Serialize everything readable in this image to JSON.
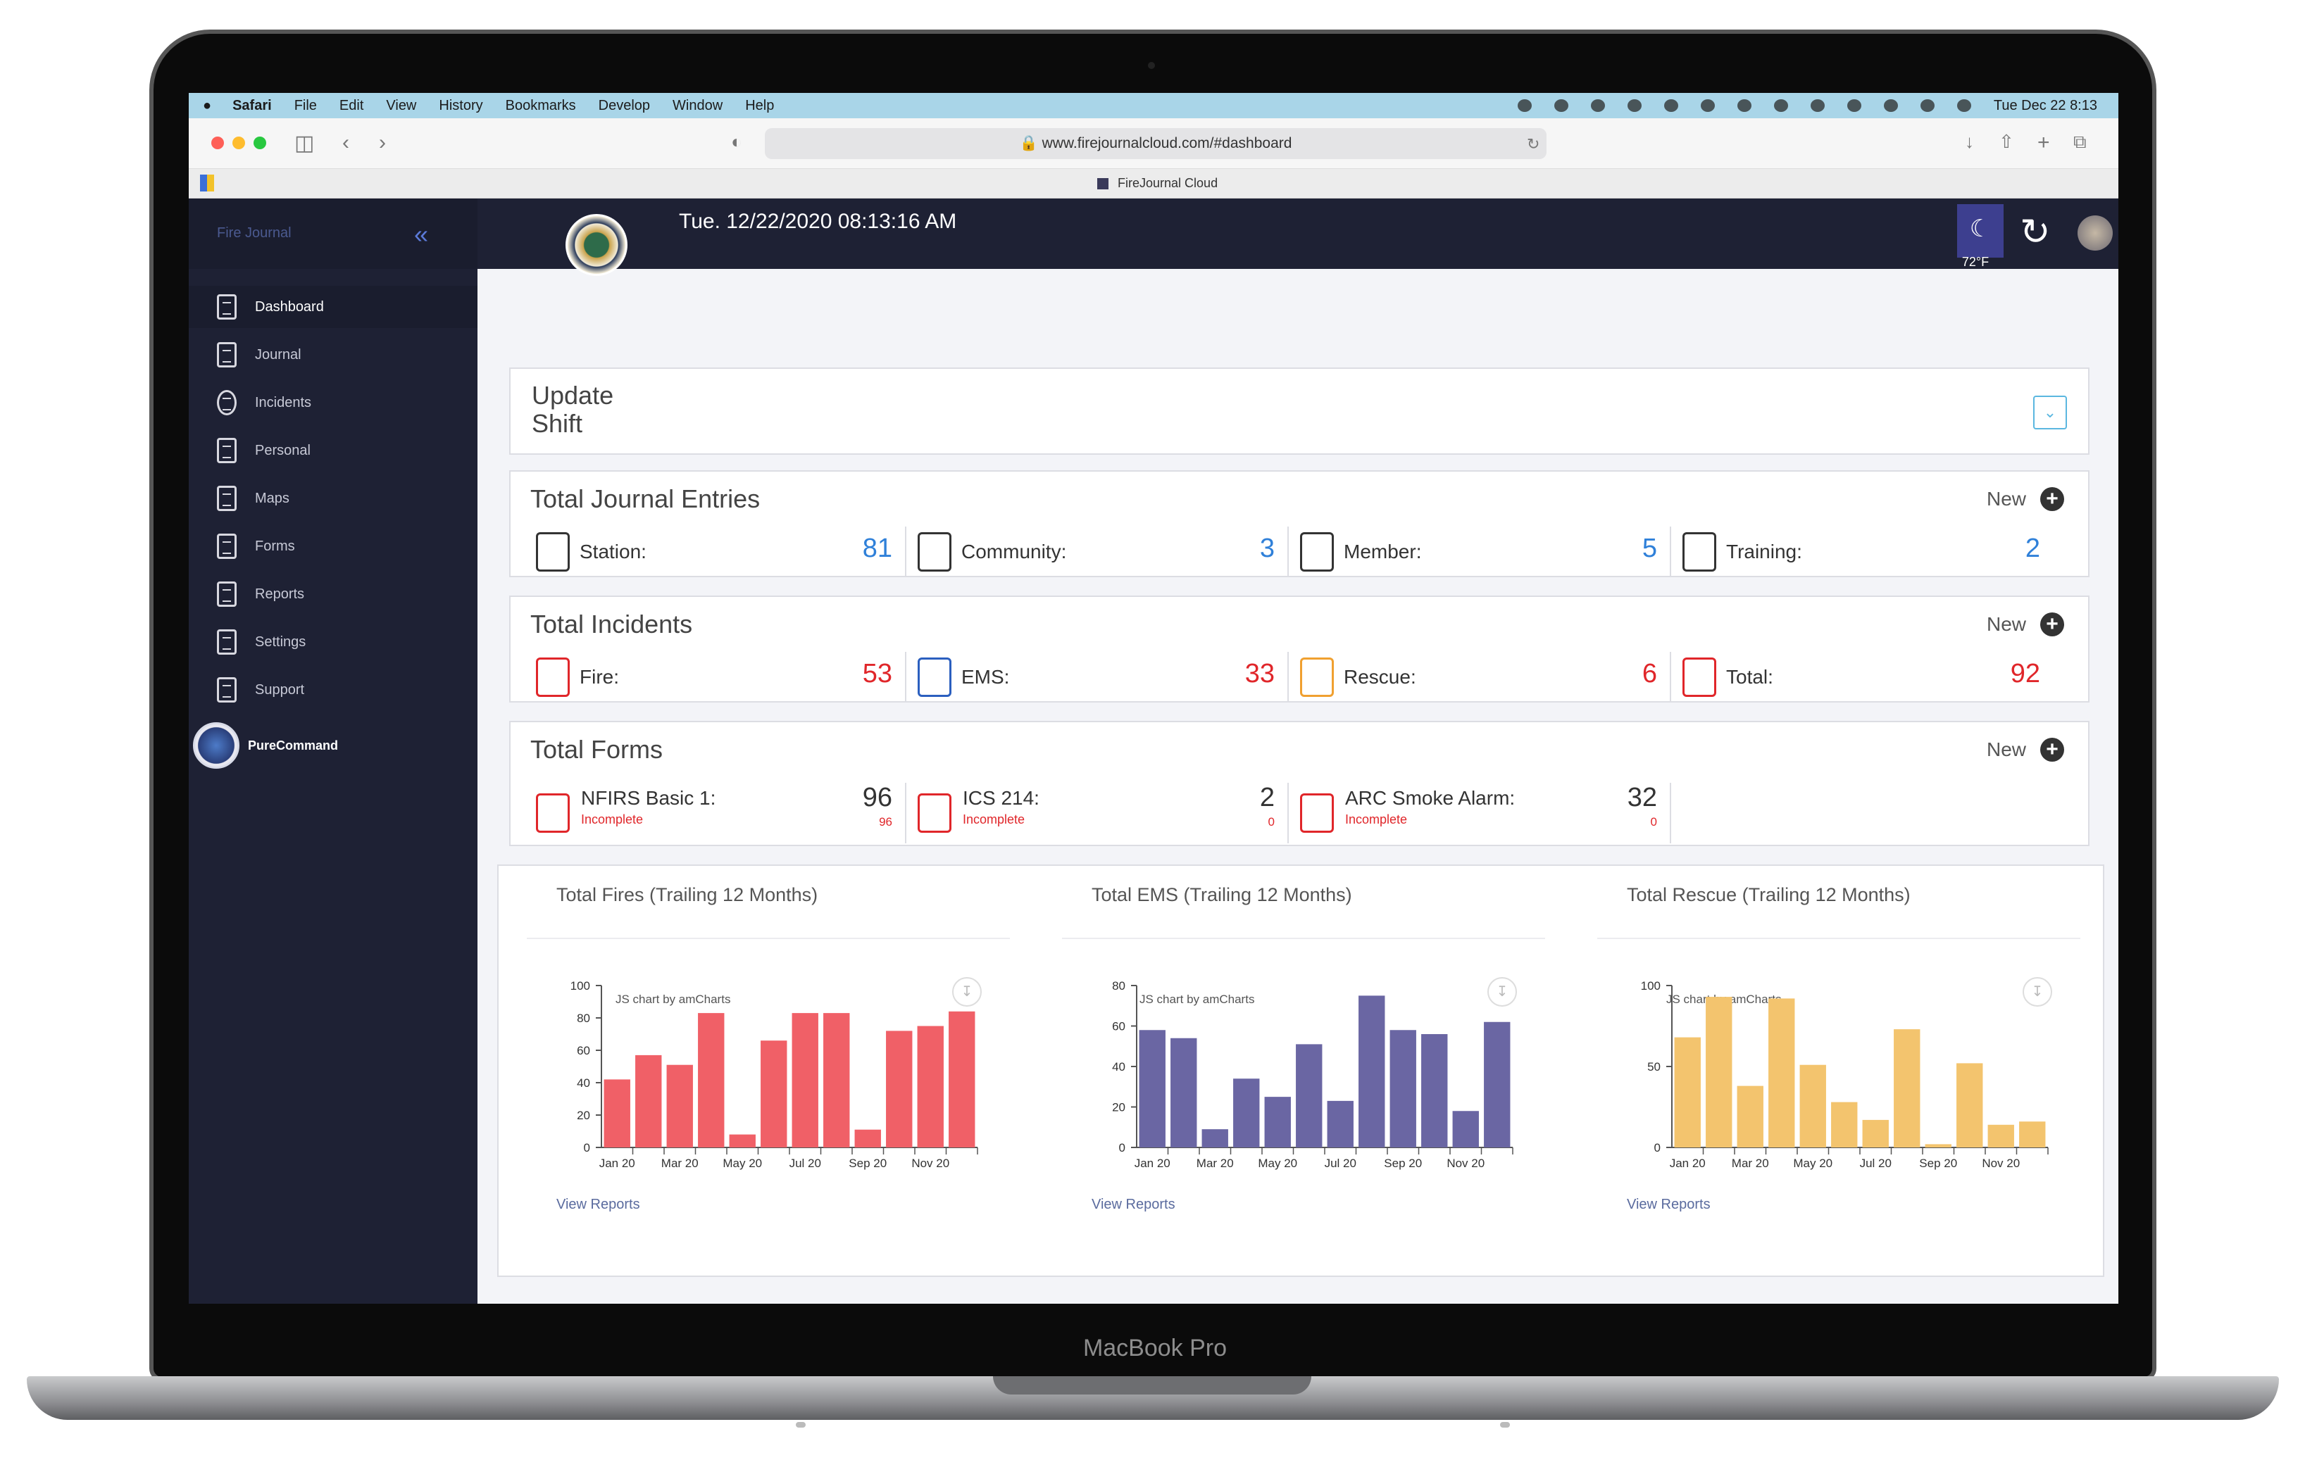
{
  "menubar": {
    "app": "Safari",
    "items": [
      "File",
      "Edit",
      "View",
      "History",
      "Bookmarks",
      "Develop",
      "Window",
      "Help"
    ],
    "clock": "Tue Dec 22  8:13"
  },
  "browser": {
    "url": "www.firejournalcloud.com/#dashboard",
    "tab_title": "FireJournal Cloud"
  },
  "laptop_label": "MacBook Pro",
  "sidebar": {
    "brand": "Fire Journal",
    "items": [
      {
        "label": "Dashboard",
        "icon": "clipboard-icon"
      },
      {
        "label": "Journal",
        "icon": "notebook-icon"
      },
      {
        "label": "Incidents",
        "icon": "siren-icon"
      },
      {
        "label": "Personal",
        "icon": "lock-icon"
      },
      {
        "label": "Maps",
        "icon": "map-icon"
      },
      {
        "label": "Forms",
        "icon": "form-icon"
      },
      {
        "label": "Reports",
        "icon": "chart-icon"
      },
      {
        "label": "Settings",
        "icon": "gear-icon"
      },
      {
        "label": "Support",
        "icon": "support-icon"
      }
    ],
    "purecommand": "PureCommand"
  },
  "header": {
    "datetime": "Tue. 12/22/2020 08:13:16 AM",
    "temperature": "72°F"
  },
  "shift": {
    "title": "Update Shift"
  },
  "journal": {
    "title": "Total Journal Entries",
    "new_label": "New",
    "stats": [
      {
        "label": "Station:",
        "value": "81"
      },
      {
        "label": "Community:",
        "value": "3"
      },
      {
        "label": "Member:",
        "value": "5"
      },
      {
        "label": "Training:",
        "value": "2"
      }
    ]
  },
  "incidents": {
    "title": "Total Incidents",
    "new_label": "New",
    "stats": [
      {
        "label": "Fire:",
        "value": "53"
      },
      {
        "label": "EMS:",
        "value": "33"
      },
      {
        "label": "Rescue:",
        "value": "6"
      },
      {
        "label": "Total:",
        "value": "92"
      }
    ]
  },
  "forms": {
    "title": "Total Forms",
    "new_label": "New",
    "stats": [
      {
        "label": "NFIRS Basic 1:",
        "status": "Incomplete",
        "value": "96",
        "incomplete": "96"
      },
      {
        "label": "ICS 214:",
        "status": "Incomplete",
        "value": "2",
        "incomplete": "0"
      },
      {
        "label": "ARC Smoke Alarm:",
        "status": "Incomplete",
        "value": "32",
        "incomplete": "0"
      }
    ]
  },
  "chart_data": [
    {
      "type": "bar",
      "title": "Total Fires (Trailing 12 Months)",
      "categories": [
        "Jan 20",
        "Feb 20",
        "Mar 20",
        "Apr 20",
        "May 20",
        "Jun 20",
        "Jul 20",
        "Aug 20",
        "Sep 20",
        "Oct 20",
        "Nov 20",
        "Dec 20"
      ],
      "tick_labels": [
        "Jan 20",
        "Mar 20",
        "May 20",
        "Jul 20",
        "Sep 20",
        "Nov 20"
      ],
      "values": [
        42,
        57,
        51,
        83,
        8,
        66,
        83,
        83,
        11,
        72,
        75,
        84
      ],
      "ylim": [
        0,
        100
      ],
      "yticks": [
        0,
        20,
        40,
        60,
        80,
        100
      ],
      "color": "#f06067",
      "credit": "JS chart by amCharts",
      "link": "View Reports"
    },
    {
      "type": "bar",
      "title": "Total EMS (Trailing 12 Months)",
      "categories": [
        "Jan 20",
        "Feb 20",
        "Mar 20",
        "Apr 20",
        "May 20",
        "Jun 20",
        "Jul 20",
        "Aug 20",
        "Sep 20",
        "Oct 20",
        "Nov 20",
        "Dec 20"
      ],
      "tick_labels": [
        "Jan 20",
        "Mar 20",
        "May 20",
        "Jul 20",
        "Sep 20",
        "Nov 20"
      ],
      "values": [
        58,
        54,
        9,
        34,
        25,
        51,
        23,
        75,
        58,
        56,
        18,
        62
      ],
      "ylim": [
        0,
        80
      ],
      "yticks": [
        0,
        20,
        40,
        60,
        80
      ],
      "color": "#6a66a3",
      "credit": "JS chart by amCharts",
      "link": "View Reports"
    },
    {
      "type": "bar",
      "title": "Total Rescue (Trailing 12 Months)",
      "categories": [
        "Jan 20",
        "Feb 20",
        "Mar 20",
        "Apr 20",
        "May 20",
        "Jun 20",
        "Jul 20",
        "Aug 20",
        "Sep 20",
        "Oct 20",
        "Nov 20",
        "Dec 20"
      ],
      "tick_labels": [
        "Jan 20",
        "Mar 20",
        "May 20",
        "Jul 20",
        "Sep 20",
        "Nov 20"
      ],
      "values": [
        68,
        93,
        38,
        92,
        51,
        28,
        17,
        73,
        2,
        52,
        14,
        16
      ],
      "ylim": [
        0,
        100
      ],
      "yticks": [
        0,
        50,
        100
      ],
      "color": "#f3c46e",
      "credit": "JS chart by amCharts",
      "link": "View Reports"
    }
  ]
}
